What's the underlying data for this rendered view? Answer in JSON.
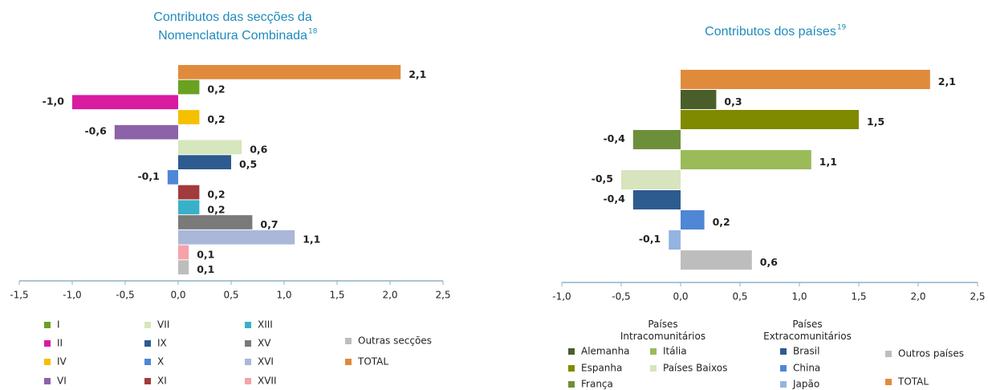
{
  "chart_data": [
    {
      "type": "bar",
      "orientation": "horizontal",
      "title_lines": [
        "Contributos das secções da",
        "Nomenclatura Combinada"
      ],
      "title_note": "18",
      "categories": [
        "TOTAL",
        "I",
        "II",
        "IV",
        "VI",
        "VII",
        "IX",
        "X",
        "XI",
        "XIII",
        "XV",
        "XVI",
        "XVII",
        "Outras secções"
      ],
      "values": [
        2.1,
        0.2,
        -1.0,
        0.2,
        -0.6,
        0.6,
        0.5,
        -0.1,
        0.2,
        0.2,
        0.7,
        1.1,
        0.1,
        0.1
      ],
      "value_labels": [
        "2,1",
        "0,2",
        "-1,0",
        "0,2",
        "-0,6",
        "0,6",
        "0,5",
        "-0,1",
        "0,2",
        "0,2",
        "0,7",
        "1,1",
        "0,1",
        "0,1"
      ],
      "colors": [
        "#e08a3c",
        "#6aa121",
        "#d81ba0",
        "#f5c000",
        "#8c62a8",
        "#d6e6bd",
        "#2e5b8f",
        "#4f86d6",
        "#a23b3b",
        "#3ab0c8",
        "#7a7a7a",
        "#aab7d8",
        "#f5a3a8",
        "#bdbdbd"
      ],
      "xlim": [
        -1.5,
        2.5
      ],
      "xticks": [
        {
          "value": -1.5,
          "label": "-1,5"
        },
        {
          "value": -1.0,
          "label": "-1,0"
        },
        {
          "value": -0.5,
          "label": "-0,5"
        },
        {
          "value": 0,
          "label": "0,0"
        },
        {
          "value": 0.5,
          "label": "0,5"
        },
        {
          "value": 1.0,
          "label": "1,0"
        },
        {
          "value": 1.5,
          "label": "1,5"
        },
        {
          "value": 2.0,
          "label": "2,0"
        },
        {
          "value": 2.5,
          "label": "2,5"
        }
      ]
    },
    {
      "type": "bar",
      "orientation": "horizontal",
      "title_lines": [
        "Contributos dos países"
      ],
      "title_note": "19",
      "legend_groups": [
        "Países\nIntracomunitários",
        "Países\nExtracomunitários"
      ],
      "categories": [
        "TOTAL",
        "Alemanha",
        "Espanha",
        "França",
        "Itália",
        "Países Baixos",
        "Brasil",
        "China",
        "Japão",
        "Outros países"
      ],
      "values": [
        2.1,
        0.3,
        1.5,
        -0.4,
        1.1,
        -0.5,
        -0.4,
        0.2,
        -0.1,
        0.6
      ],
      "value_labels": [
        "2,1",
        "0,3",
        "1,5",
        "-0,4",
        "1,1",
        "-0,5",
        "-0,4",
        "0,2",
        "-0,1",
        "0,6"
      ],
      "colors": [
        "#e08a3c",
        "#4a5e2a",
        "#7f8a00",
        "#6e8f3a",
        "#9bbb59",
        "#d7e4bd",
        "#2e5b8f",
        "#4f86d6",
        "#95b3e0",
        "#bdbdbd"
      ],
      "xlim": [
        -1.0,
        2.5
      ],
      "xticks": [
        {
          "value": -1.0,
          "label": "-1,0"
        },
        {
          "value": -0.5,
          "label": "-0,5"
        },
        {
          "value": 0,
          "label": "0,0"
        },
        {
          "value": 0.5,
          "label": "0,5"
        },
        {
          "value": 1.0,
          "label": "1,0"
        },
        {
          "value": 1.5,
          "label": "1,5"
        },
        {
          "value": 2.0,
          "label": "2,0"
        },
        {
          "value": 2.5,
          "label": "2,5"
        }
      ]
    }
  ]
}
